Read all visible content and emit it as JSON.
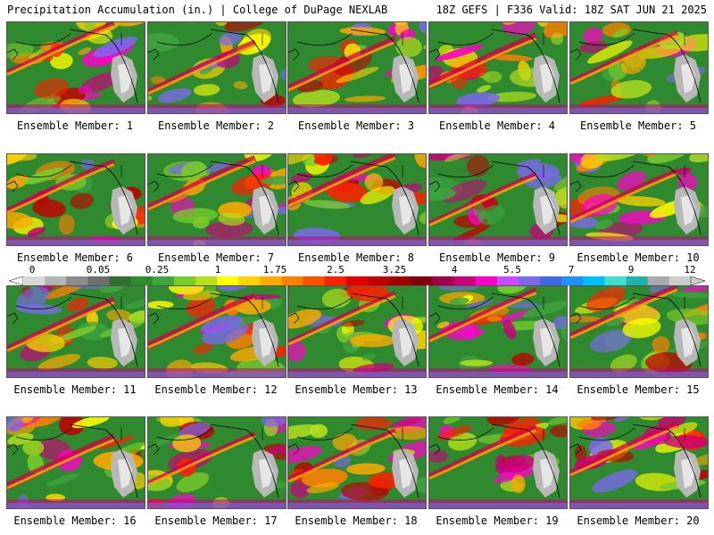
{
  "header": {
    "left": "Precipitation Accumulation (in.) | College of DuPage NEXLAB",
    "right": "18Z GEFS | F336 Valid: 18Z SAT JUN 21 2025"
  },
  "colorbar": {
    "tick_labels": [
      "0",
      "0.05",
      "0.25",
      "1",
      "1.75",
      "2.5",
      "3.25",
      "4",
      "5.5",
      "7",
      "9",
      "12"
    ],
    "colors": [
      "#d8d8d8",
      "#b4b4b4",
      "#8c8c8c",
      "#6e6e6e",
      "#2e6e2e",
      "#2e8b2e",
      "#3fa53f",
      "#7acc2a",
      "#b4e01e",
      "#ffff00",
      "#ffd200",
      "#ffaa00",
      "#ff7f00",
      "#ff5000",
      "#ff2000",
      "#e60000",
      "#c00000",
      "#a00000",
      "#800010",
      "#a0004a",
      "#c8007a",
      "#ff00c8",
      "#c84bff",
      "#7b68ee",
      "#4169e1",
      "#1e90ff",
      "#00bfff",
      "#40e0d0",
      "#20b2aa",
      "#aaaaaa",
      "#cccccc"
    ]
  },
  "panels": [
    {
      "label": "Ensemble Member: 1"
    },
    {
      "label": "Ensemble Member: 2"
    },
    {
      "label": "Ensemble Member: 3"
    },
    {
      "label": "Ensemble Member: 4"
    },
    {
      "label": "Ensemble Member: 5"
    },
    {
      "label": "Ensemble Member: 6"
    },
    {
      "label": "Ensemble Member: 7"
    },
    {
      "label": "Ensemble Member: 8"
    },
    {
      "label": "Ensemble Member: 9"
    },
    {
      "label": "Ensemble Member: 10"
    },
    {
      "label": "Ensemble Member: 11"
    },
    {
      "label": "Ensemble Member: 12"
    },
    {
      "label": "Ensemble Member: 13"
    },
    {
      "label": "Ensemble Member: 14"
    },
    {
      "label": "Ensemble Member: 15"
    },
    {
      "label": "Ensemble Member: 16"
    },
    {
      "label": "Ensemble Member: 17"
    },
    {
      "label": "Ensemble Member: 18"
    },
    {
      "label": "Ensemble Member: 19"
    },
    {
      "label": "Ensemble Member: 20"
    }
  ]
}
